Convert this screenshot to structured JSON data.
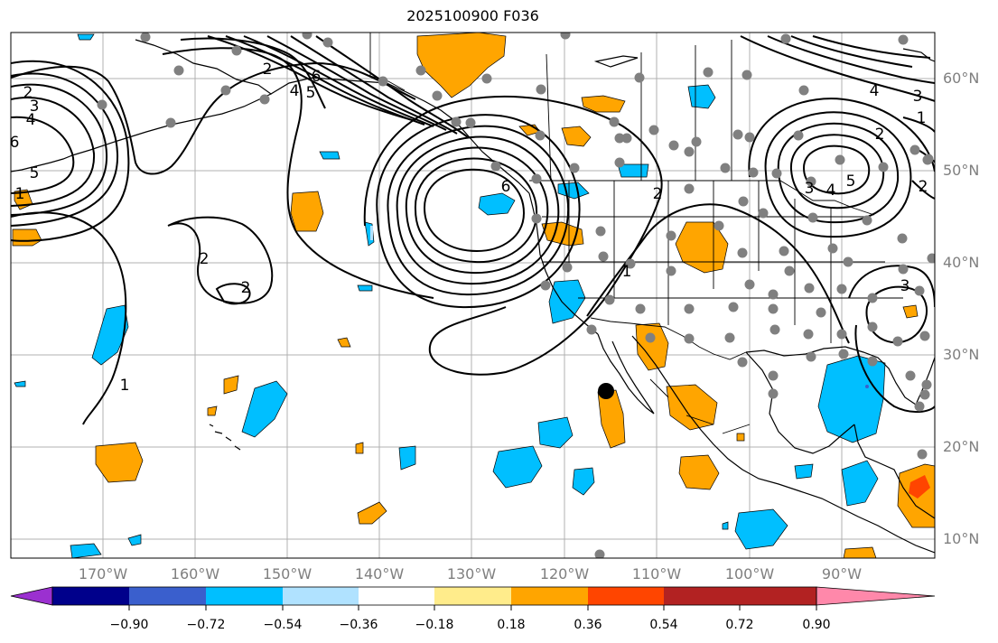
{
  "title": "2025100900 F036",
  "lat_labels": [
    "60°N",
    "50°N",
    "40°N",
    "30°N",
    "20°N",
    "10°N"
  ],
  "lon_labels": [
    "170°W",
    "160°W",
    "150°W",
    "140°W",
    "130°W",
    "120°W",
    "110°W",
    "100°W",
    "90°W"
  ],
  "colorbar": {
    "ticks": [
      "−0.90",
      "−0.72",
      "−0.54",
      "−0.36",
      "−0.18",
      "0.18",
      "0.36",
      "0.54",
      "0.72",
      "0.90"
    ],
    "colors": [
      "#9b30d0",
      "#00008b",
      "#3a5fcd",
      "#00bfff",
      "#b0e2ff",
      "#ffffff",
      "#ffec8b",
      "#ffa500",
      "#ff4500",
      "#b22222",
      "#ff88aa"
    ]
  },
  "contour_labels": [
    "2",
    "3",
    "4",
    "6",
    "5",
    "1",
    "2",
    "2",
    "1",
    "2",
    "6",
    "4",
    "5",
    "2",
    "1",
    "3",
    "6",
    "4",
    "3",
    "1",
    "2",
    "5",
    "4",
    "3",
    "2"
  ],
  "colors": {
    "blue_fill": "#00bfff",
    "orange_fill": "#ffa500",
    "red_fill": "#ff4500",
    "station_dot": "#808080",
    "marker": "#000000",
    "grid": "#b0b0b0",
    "label_gray": "#7f7f7f"
  }
}
